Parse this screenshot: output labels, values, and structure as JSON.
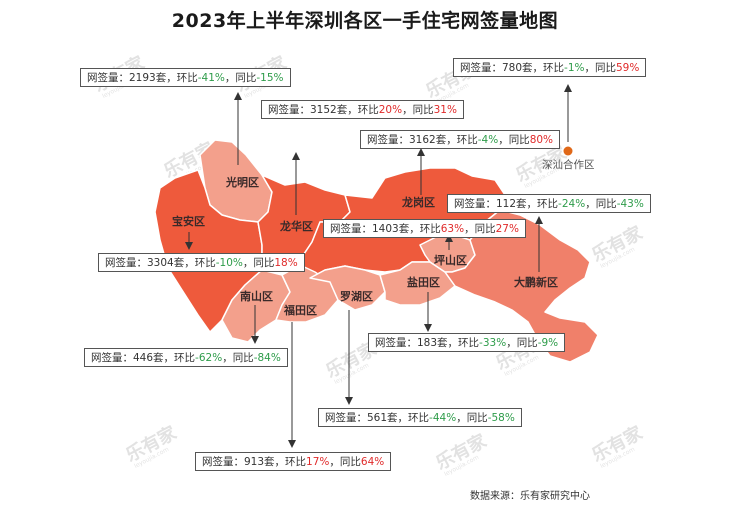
{
  "title": "2023年上半年深圳各区一手住宅网签量地图",
  "source": "数据来源：乐有家研究中心",
  "watermark": {
    "text": "乐有家",
    "subtext": "leyoujia.com"
  },
  "colors": {
    "dark": "#ee5a3c",
    "medium": "#f0806a",
    "light": "#f3a08c",
    "border": "#ffffff",
    "up": "#e02a2a",
    "down": "#2e9c4a",
    "cooperation_zone_dot": "#e06818"
  },
  "labels": {
    "volume": "网签量：",
    "unit": "套",
    "mom": "环比",
    "yoy": "同比",
    "sep": "，"
  },
  "districts": [
    {
      "id": "guangming",
      "name": "光明区",
      "volume": "2193",
      "mom": "-41%",
      "yoy": "-15%",
      "shade": "light"
    },
    {
      "id": "longhua",
      "name": "龙华区",
      "volume": "3152",
      "mom": "20%",
      "yoy": "31%",
      "shade": "dark"
    },
    {
      "id": "longgang",
      "name": "龙岗区",
      "volume": "3162",
      "mom": "-4%",
      "yoy": "80%",
      "shade": "dark"
    },
    {
      "id": "shenshan",
      "name": "深汕合作区",
      "volume": "780",
      "mom": "-1%",
      "yoy": "59%",
      "shade": "dot"
    },
    {
      "id": "pingshan",
      "name": "坪山区",
      "volume": "112",
      "mom": "-24%",
      "yoy": "-43%",
      "shade": "light"
    },
    {
      "id": "dapeng",
      "name": "大鹏新区",
      "volume": "1403",
      "mom": "63%",
      "yoy": "27%",
      "shade": "medium"
    },
    {
      "id": "baoan",
      "name": "宝安区",
      "volume": "3304",
      "mom": "-10%",
      "yoy": "18%",
      "shade": "dark"
    },
    {
      "id": "nanshan",
      "name": "南山区",
      "volume": "446",
      "mom": "-62%",
      "yoy": "-84%",
      "shade": "light"
    },
    {
      "id": "yantian",
      "name": "盐田区",
      "volume": "183",
      "mom": "-33%",
      "yoy": "-9%",
      "shade": "light"
    },
    {
      "id": "luohu",
      "name": "罗湖区",
      "volume": "561",
      "mom": "-44%",
      "yoy": "-58%",
      "shade": "light"
    },
    {
      "id": "futian",
      "name": "福田区",
      "volume": "913",
      "mom": "17%",
      "yoy": "64%",
      "shade": "light"
    }
  ]
}
